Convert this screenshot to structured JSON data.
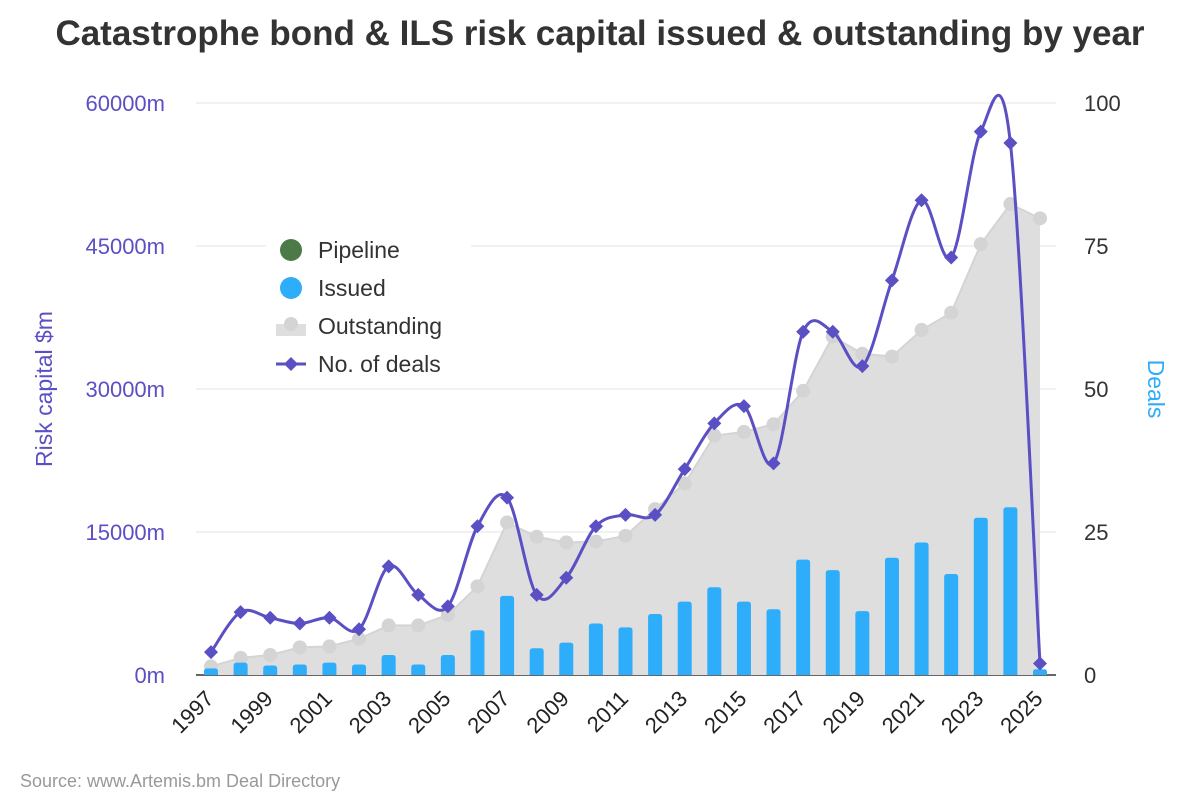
{
  "title": "Catastrophe bond & ILS risk capital issued & outstanding by year",
  "source": "Source: www.Artemis.bm Deal Directory",
  "colors": {
    "pipeline": "#4b7a47",
    "issued": "#2eadfa",
    "outstanding": "#d9d9d9",
    "deals": "#5b4fc4",
    "left_axis_text": "#5b4fc4",
    "right_axis_title": "#2eadfa"
  },
  "chart_data": {
    "type": "bar",
    "x": [
      1997,
      1998,
      1999,
      2000,
      2001,
      2002,
      2003,
      2004,
      2005,
      2006,
      2007,
      2008,
      2009,
      2010,
      2011,
      2012,
      2013,
      2014,
      2015,
      2016,
      2017,
      2018,
      2019,
      2020,
      2021,
      2022,
      2023,
      2024,
      2025
    ],
    "x_tick_labels": [
      "1997",
      "1999",
      "2001",
      "2003",
      "2005",
      "2007",
      "2009",
      "2011",
      "2013",
      "2015",
      "2017",
      "2019",
      "2021",
      "2023",
      "2025"
    ],
    "left_axis": {
      "label": "Risk capital $m",
      "range": [
        0,
        60000
      ],
      "ticks": [
        0,
        15000,
        30000,
        45000,
        60000
      ],
      "tick_labels": [
        "0m",
        "15000m",
        "30000m",
        "45000m",
        "60000m"
      ]
    },
    "right_axis": {
      "label": "Deals",
      "range": [
        0,
        100
      ],
      "ticks": [
        0,
        25,
        50,
        75,
        100
      ],
      "tick_labels": [
        "0",
        "25",
        "50",
        "75",
        "100"
      ]
    },
    "series": [
      {
        "name": "Pipeline",
        "kind": "bar",
        "axis": "left",
        "values": [
          0,
          0,
          0,
          0,
          0,
          0,
          0,
          0,
          0,
          0,
          0,
          0,
          0,
          0,
          0,
          0,
          0,
          0,
          0,
          0,
          0,
          0,
          0,
          0,
          0,
          0,
          0,
          0,
          0
        ]
      },
      {
        "name": "Issued",
        "kind": "bar",
        "axis": "left",
        "values": [
          700,
          1300,
          1000,
          1100,
          1300,
          1100,
          2100,
          1100,
          2100,
          4700,
          8300,
          2800,
          3400,
          5400,
          5000,
          6400,
          7700,
          9200,
          7700,
          6900,
          12100,
          11000,
          6700,
          12300,
          13900,
          10600,
          16500,
          17600,
          600
        ]
      },
      {
        "name": "Outstanding",
        "kind": "area",
        "axis": "left",
        "values": [
          900,
          1800,
          2100,
          2900,
          3000,
          3800,
          5200,
          5200,
          6300,
          9300,
          16000,
          14500,
          13900,
          14000,
          14600,
          17400,
          20100,
          25100,
          25500,
          26300,
          29800,
          35500,
          33700,
          33400,
          36200,
          38000,
          45200,
          49400,
          47900
        ]
      },
      {
        "name": "No. of deals",
        "kind": "line",
        "axis": "right",
        "values": [
          4,
          11,
          10,
          9,
          10,
          8,
          19,
          14,
          12,
          26,
          31,
          14,
          17,
          26,
          28,
          28,
          36,
          44,
          47,
          37,
          60,
          60,
          54,
          69,
          83,
          73,
          95,
          93,
          2
        ]
      }
    ],
    "legend": {
      "position": "upper-left",
      "entries": [
        "Pipeline",
        "Issued",
        "Outstanding",
        "No. of deals"
      ]
    },
    "grid": "horizontal"
  }
}
